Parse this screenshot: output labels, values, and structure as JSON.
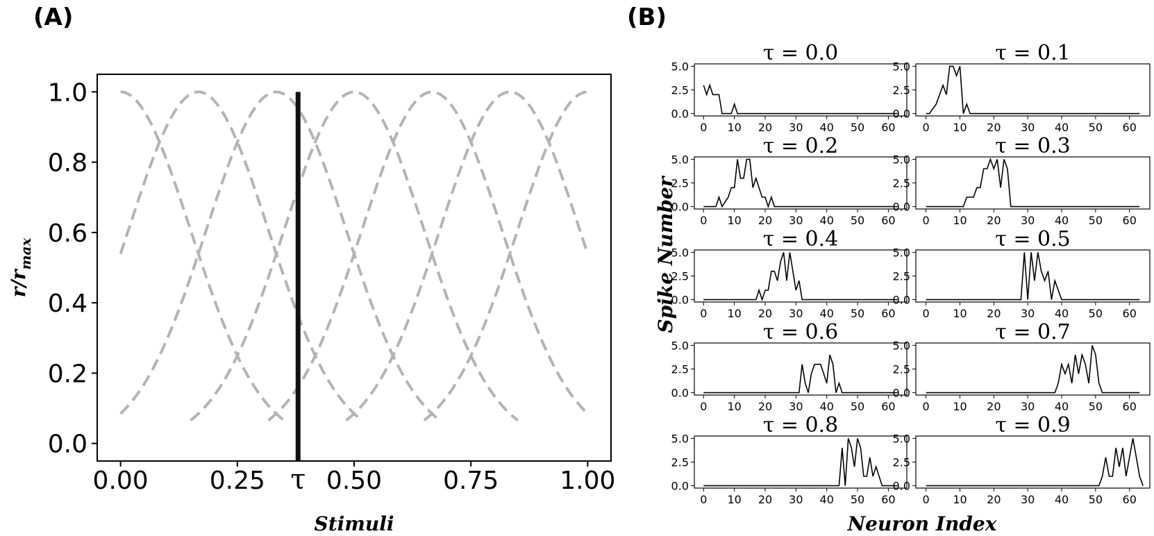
{
  "chart_data": [
    {
      "panel_label": "(A)",
      "type": "line",
      "title": "",
      "xlabel": "Stimuli",
      "ylabel": "r/r",
      "ylabel_sub": "max",
      "xlim": [
        -0.05,
        1.05
      ],
      "ylim": [
        -0.05,
        1.05
      ],
      "xticks": [
        0,
        0.25,
        0.5,
        0.75,
        1.0
      ],
      "xtick_labels": [
        "0.00",
        "0.25",
        "0.50",
        "0.75",
        "1.00"
      ],
      "yticks": [
        0,
        0.2,
        0.4,
        0.6,
        0.8,
        1.0
      ],
      "ytick_labels": [
        "0.0",
        "0.2",
        "0.4",
        "0.6",
        "0.8",
        "1.0"
      ],
      "tuning_curves": {
        "style": "dashed",
        "color": "#b3b3b3",
        "centers": [
          0.0,
          0.1667,
          0.3333,
          0.5,
          0.6667,
          0.8333,
          1.0
        ],
        "sigma": 0.15,
        "x_span": [
          -0.35,
          0.35
        ]
      },
      "marker_line": {
        "x": 0.38,
        "label": "τ",
        "color": "#111111"
      }
    },
    {
      "panel_label": "(B)",
      "type": "line",
      "xlabel": "Neuron Index",
      "ylabel": "Spike Number",
      "xlim": [
        -3,
        66
      ],
      "ylim": [
        -0.25,
        5.25
      ],
      "xticks": [
        0,
        10,
        20,
        30,
        40,
        50,
        60
      ],
      "yticks": [
        0,
        2.5,
        5.0
      ],
      "ytick_labels": [
        "0.0",
        "2.5",
        "5.0"
      ],
      "line_color": "#000000",
      "subplots": [
        {
          "title": "τ = 0.0",
          "series": [
            {
              "x": 0,
              "y": 3
            },
            {
              "x": 1,
              "y": 2
            },
            {
              "x": 2,
              "y": 3
            },
            {
              "x": 3,
              "y": 2
            },
            {
              "x": 4,
              "y": 2
            },
            {
              "x": 5,
              "y": 2
            },
            {
              "x": 6,
              "y": 0
            },
            {
              "x": 9,
              "y": 0
            },
            {
              "x": 10,
              "y": 1
            },
            {
              "x": 11,
              "y": 0
            },
            {
              "x": 63,
              "y": 0
            }
          ]
        },
        {
          "title": "τ = 0.1",
          "series": [
            {
              "x": 0,
              "y": 0
            },
            {
              "x": 1,
              "y": 0
            },
            {
              "x": 3,
              "y": 1
            },
            {
              "x": 5,
              "y": 3
            },
            {
              "x": 6,
              "y": 2
            },
            {
              "x": 7,
              "y": 5
            },
            {
              "x": 8,
              "y": 5
            },
            {
              "x": 9,
              "y": 4
            },
            {
              "x": 10,
              "y": 5
            },
            {
              "x": 11,
              "y": 0
            },
            {
              "x": 12,
              "y": 1
            },
            {
              "x": 13,
              "y": 0
            },
            {
              "x": 63,
              "y": 0
            }
          ]
        },
        {
          "title": "τ = 0.2",
          "series": [
            {
              "x": 0,
              "y": 0
            },
            {
              "x": 4,
              "y": 0
            },
            {
              "x": 5,
              "y": 1
            },
            {
              "x": 6,
              "y": 0
            },
            {
              "x": 8,
              "y": 1
            },
            {
              "x": 9,
              "y": 2
            },
            {
              "x": 10,
              "y": 2
            },
            {
              "x": 11,
              "y": 5
            },
            {
              "x": 12,
              "y": 3
            },
            {
              "x": 13,
              "y": 3
            },
            {
              "x": 14,
              "y": 5
            },
            {
              "x": 15,
              "y": 5
            },
            {
              "x": 16,
              "y": 2
            },
            {
              "x": 17,
              "y": 3
            },
            {
              "x": 18,
              "y": 2
            },
            {
              "x": 19,
              "y": 1
            },
            {
              "x": 20,
              "y": 1
            },
            {
              "x": 21,
              "y": 0
            },
            {
              "x": 22,
              "y": 1
            },
            {
              "x": 23,
              "y": 0
            },
            {
              "x": 63,
              "y": 0
            }
          ]
        },
        {
          "title": "τ = 0.3",
          "series": [
            {
              "x": 0,
              "y": 0
            },
            {
              "x": 11,
              "y": 0
            },
            {
              "x": 12,
              "y": 1
            },
            {
              "x": 14,
              "y": 1
            },
            {
              "x": 15,
              "y": 2
            },
            {
              "x": 16,
              "y": 2
            },
            {
              "x": 17,
              "y": 4
            },
            {
              "x": 18,
              "y": 4
            },
            {
              "x": 19,
              "y": 5
            },
            {
              "x": 20,
              "y": 4
            },
            {
              "x": 21,
              "y": 5
            },
            {
              "x": 22,
              "y": 2
            },
            {
              "x": 23,
              "y": 5
            },
            {
              "x": 24,
              "y": 4
            },
            {
              "x": 25,
              "y": 0
            },
            {
              "x": 63,
              "y": 0
            }
          ]
        },
        {
          "title": "τ = 0.4",
          "series": [
            {
              "x": 0,
              "y": 0
            },
            {
              "x": 17,
              "y": 0
            },
            {
              "x": 18,
              "y": 1
            },
            {
              "x": 19,
              "y": 0
            },
            {
              "x": 20,
              "y": 1
            },
            {
              "x": 21,
              "y": 1
            },
            {
              "x": 22,
              "y": 3
            },
            {
              "x": 23,
              "y": 3
            },
            {
              "x": 24,
              "y": 2
            },
            {
              "x": 25,
              "y": 4
            },
            {
              "x": 26,
              "y": 5
            },
            {
              "x": 27,
              "y": 2
            },
            {
              "x": 28,
              "y": 5
            },
            {
              "x": 29,
              "y": 3
            },
            {
              "x": 30,
              "y": 1
            },
            {
              "x": 31,
              "y": 2
            },
            {
              "x": 32,
              "y": 0
            },
            {
              "x": 63,
              "y": 0
            }
          ]
        },
        {
          "title": "τ = 0.5",
          "series": [
            {
              "x": 0,
              "y": 0
            },
            {
              "x": 28,
              "y": 0
            },
            {
              "x": 29,
              "y": 5
            },
            {
              "x": 30,
              "y": 0
            },
            {
              "x": 31,
              "y": 5
            },
            {
              "x": 32,
              "y": 2
            },
            {
              "x": 33,
              "y": 5
            },
            {
              "x": 34,
              "y": 3
            },
            {
              "x": 35,
              "y": 2
            },
            {
              "x": 36,
              "y": 3
            },
            {
              "x": 37,
              "y": 0
            },
            {
              "x": 38,
              "y": 2
            },
            {
              "x": 39,
              "y": 1
            },
            {
              "x": 40,
              "y": 0
            },
            {
              "x": 63,
              "y": 0
            }
          ]
        },
        {
          "title": "τ = 0.6",
          "series": [
            {
              "x": 0,
              "y": 0
            },
            {
              "x": 31,
              "y": 0
            },
            {
              "x": 32,
              "y": 3
            },
            {
              "x": 33,
              "y": 1
            },
            {
              "x": 34,
              "y": 0
            },
            {
              "x": 35,
              "y": 2
            },
            {
              "x": 36,
              "y": 3
            },
            {
              "x": 37,
              "y": 3
            },
            {
              "x": 38,
              "y": 3
            },
            {
              "x": 39,
              "y": 2
            },
            {
              "x": 40,
              "y": 1
            },
            {
              "x": 41,
              "y": 4
            },
            {
              "x": 42,
              "y": 3
            },
            {
              "x": 43,
              "y": 0
            },
            {
              "x": 44,
              "y": 1
            },
            {
              "x": 45,
              "y": 0
            },
            {
              "x": 63,
              "y": 0
            }
          ]
        },
        {
          "title": "τ = 0.7",
          "series": [
            {
              "x": 0,
              "y": 0
            },
            {
              "x": 38,
              "y": 0
            },
            {
              "x": 39,
              "y": 1
            },
            {
              "x": 40,
              "y": 3
            },
            {
              "x": 41,
              "y": 2
            },
            {
              "x": 42,
              "y": 3
            },
            {
              "x": 43,
              "y": 1
            },
            {
              "x": 44,
              "y": 4
            },
            {
              "x": 45,
              "y": 2
            },
            {
              "x": 46,
              "y": 4
            },
            {
              "x": 47,
              "y": 3
            },
            {
              "x": 48,
              "y": 1
            },
            {
              "x": 49,
              "y": 5
            },
            {
              "x": 50,
              "y": 4
            },
            {
              "x": 51,
              "y": 1
            },
            {
              "x": 52,
              "y": 0
            },
            {
              "x": 63,
              "y": 0
            }
          ]
        },
        {
          "title": "τ = 0.8",
          "series": [
            {
              "x": 0,
              "y": 0
            },
            {
              "x": 44,
              "y": 0
            },
            {
              "x": 45,
              "y": 4
            },
            {
              "x": 46,
              "y": 0
            },
            {
              "x": 47,
              "y": 5
            },
            {
              "x": 48,
              "y": 4
            },
            {
              "x": 49,
              "y": 2
            },
            {
              "x": 50,
              "y": 5
            },
            {
              "x": 51,
              "y": 4
            },
            {
              "x": 52,
              "y": 1
            },
            {
              "x": 53,
              "y": 1
            },
            {
              "x": 54,
              "y": 3
            },
            {
              "x": 55,
              "y": 1
            },
            {
              "x": 56,
              "y": 2
            },
            {
              "x": 57,
              "y": 1
            },
            {
              "x": 58,
              "y": 0
            },
            {
              "x": 63,
              "y": 0
            }
          ]
        },
        {
          "title": "τ = 0.9",
          "series": [
            {
              "x": 0,
              "y": 0
            },
            {
              "x": 51,
              "y": 0
            },
            {
              "x": 52,
              "y": 1
            },
            {
              "x": 53,
              "y": 3
            },
            {
              "x": 54,
              "y": 1
            },
            {
              "x": 55,
              "y": 1
            },
            {
              "x": 56,
              "y": 4
            },
            {
              "x": 57,
              "y": 2
            },
            {
              "x": 58,
              "y": 4
            },
            {
              "x": 59,
              "y": 1
            },
            {
              "x": 60,
              "y": 3
            },
            {
              "x": 61,
              "y": 5
            },
            {
              "x": 62,
              "y": 3
            },
            {
              "x": 63,
              "y": 1
            },
            {
              "x": 64,
              "y": 0
            }
          ]
        }
      ]
    }
  ]
}
